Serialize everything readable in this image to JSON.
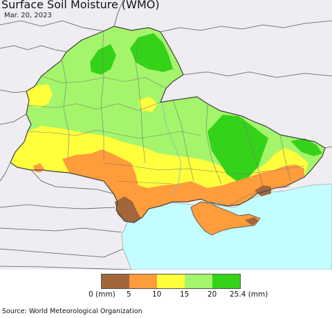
{
  "title": "Surface Soil Moisture (WMO)",
  "date": "Mar. 20, 2023",
  "source": "Source: World Meteorological Organization",
  "legend": {
    "labels": [
      "0 (mm)",
      "5",
      "10",
      "15",
      "20",
      "25.4 (mm)"
    ],
    "colors": [
      "#a1673a",
      "#ff9c3b",
      "#ffff3c",
      "#a4f56b",
      "#34d219"
    ]
  },
  "map_colors": {
    "land_outside": "#efedf1",
    "sea": "#c4fdff",
    "border": "#6d6d6d"
  }
}
